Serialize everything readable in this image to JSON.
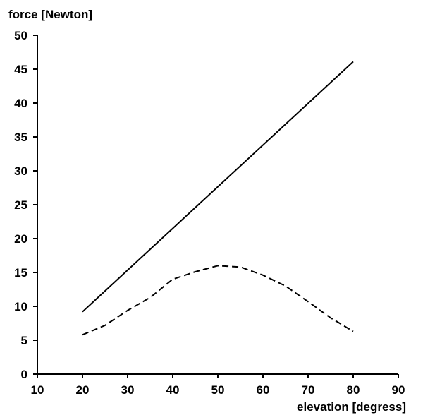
{
  "chart_data": {
    "type": "line",
    "title": "",
    "xlabel": "elevation [degress]",
    "ylabel": "force [Newton]",
    "xlim": [
      10,
      90
    ],
    "ylim": [
      0,
      50
    ],
    "x_ticks": [
      10,
      20,
      30,
      40,
      50,
      60,
      70,
      80,
      90
    ],
    "y_ticks": [
      0,
      5,
      10,
      15,
      20,
      25,
      30,
      35,
      40,
      45,
      50
    ],
    "grid": false,
    "legend": "none",
    "series": [
      {
        "style": "solid",
        "color": "#000000",
        "x": [
          20,
          80
        ],
        "y": [
          9.2,
          46.1
        ]
      },
      {
        "style": "dashed",
        "color": "#000000",
        "x": [
          20,
          25,
          30,
          35,
          40,
          45,
          50,
          55,
          60,
          65,
          70,
          75,
          80
        ],
        "y": [
          5.8,
          7.2,
          9.4,
          11.3,
          14.0,
          15.1,
          16.0,
          15.8,
          14.6,
          13.0,
          10.7,
          8.3,
          6.3
        ]
      }
    ]
  }
}
